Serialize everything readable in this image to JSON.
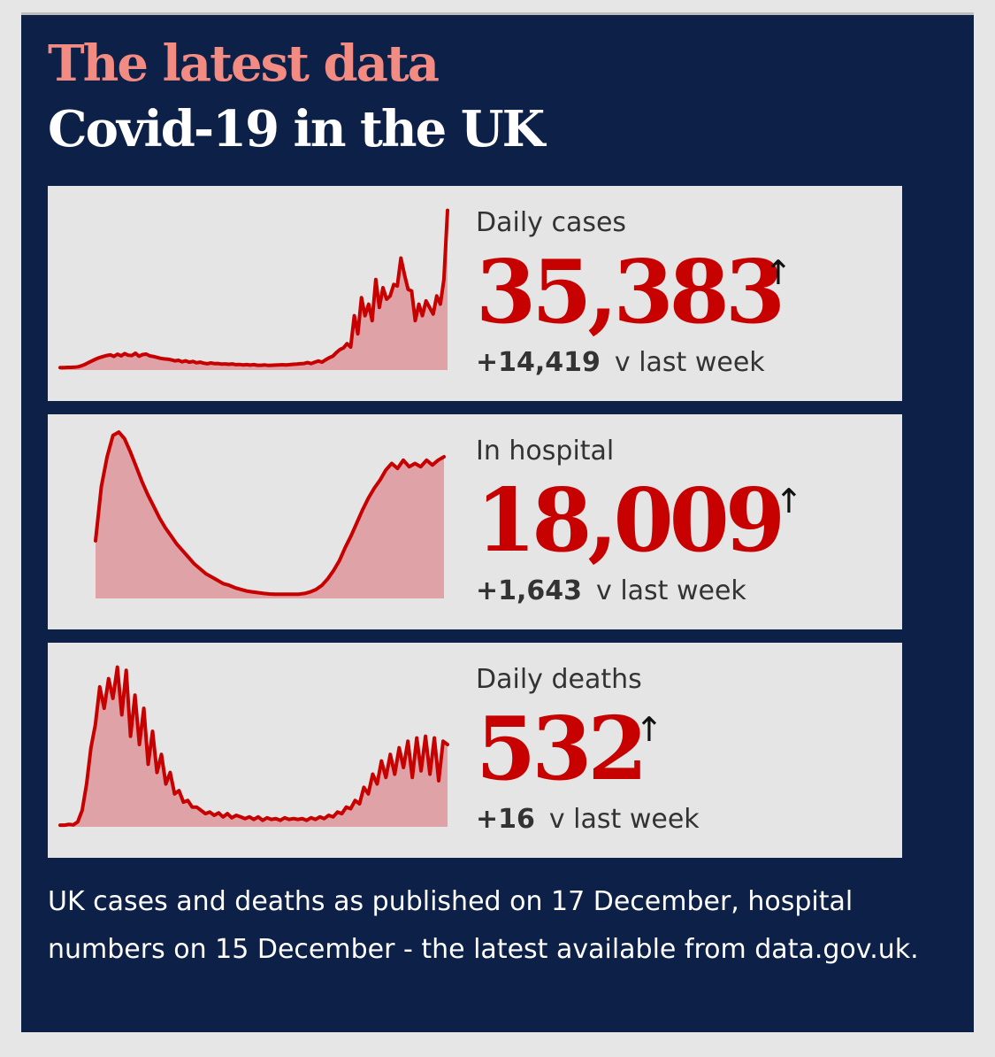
{
  "header": {
    "kicker": "The latest data",
    "title": "Covid-19 in the UK"
  },
  "panels": [
    {
      "label": "Daily cases",
      "value": "35,383",
      "arrow": "↑",
      "delta": "+14,419",
      "delta_suffix": "v last week"
    },
    {
      "label": "In hospital",
      "value": "18,009",
      "arrow": "↑",
      "delta": "+1,643",
      "delta_suffix": "v last week"
    },
    {
      "label": "Daily deaths",
      "value": "532",
      "arrow": "↑",
      "delta": "+16",
      "delta_suffix": "v last week"
    }
  ],
  "footnote": "UK cases and deaths as published on 17 December, hospital numbers on 15 December - the latest available from data.gov.uk.",
  "colors": {
    "background": "#0d2048",
    "kicker": "#f28b82",
    "accent": "#c70000",
    "area_fill": "#dfa3a7",
    "panel": "#e5e5e5"
  },
  "chart_data": [
    {
      "type": "area",
      "series": [
        {
          "values": [
            1.5,
            1.5,
            1.6,
            1.6,
            1.7,
            2,
            2.6,
            3.5,
            4.6,
            5.7,
            6.7,
            7.6,
            8.2,
            8.8,
            9.2,
            8.3,
            9.6,
            8.6,
            10,
            9,
            8.8,
            10.2,
            8.4,
            9.4,
            9.7,
            8.6,
            8.2,
            7.7,
            7.1,
            6.8,
            6.6,
            6.2,
            5.6,
            5.9,
            5,
            5.6,
            4.8,
            5.2,
            4.4,
            4.8,
            4.2,
            3.8,
            4.3,
            3.9,
            4,
            3.6,
            3.7,
            3.5,
            3.7,
            3.3,
            3.4,
            3.1,
            3.3,
            3,
            3.3,
            2.9,
            2.9,
            3.1,
            2.8,
            2.9,
            3,
            3.1,
            3.2,
            3.1,
            3.3,
            3.5,
            3.6,
            3.8,
            4,
            4.5,
            3.9,
            4.8,
            5.5,
            4.8,
            6.2,
            7.5,
            8.4,
            10.6,
            12.4,
            13.5,
            16,
            14,
            33,
            22,
            44,
            33,
            40,
            30,
            55,
            38,
            50,
            43,
            45,
            52,
            51,
            68,
            58,
            49,
            48,
            30,
            40,
            33,
            42,
            38,
            34,
            45,
            40,
            55,
            97
          ]
        }
      ],
      "ylim": [
        0,
        100
      ]
    },
    {
      "type": "area",
      "series": [
        {
          "values": [
            35,
            68,
            86,
            99,
            101,
            97,
            89,
            80,
            71,
            63,
            56,
            49,
            43,
            38,
            33,
            29,
            25,
            21,
            18,
            15,
            13,
            11,
            9,
            8,
            6.5,
            5.5,
            4.5,
            4,
            3.5,
            3,
            2.7,
            2.5,
            2.5,
            2.6,
            2.5,
            2.6,
            3,
            4,
            5.5,
            8,
            12,
            17,
            23,
            31,
            38,
            46,
            54,
            61,
            67,
            72,
            78,
            82,
            79,
            84,
            80,
            82,
            80,
            84,
            81,
            84,
            86
          ]
        }
      ],
      "ylim": [
        0,
        100
      ]
    },
    {
      "type": "area",
      "series": [
        {
          "values": [
            1,
            1,
            1.5,
            1.2,
            3,
            10,
            26,
            48,
            62,
            85,
            72,
            90,
            78,
            97,
            68,
            95,
            55,
            80,
            50,
            72,
            38,
            58,
            33,
            44,
            26,
            33,
            20,
            22,
            15,
            16,
            12,
            12,
            10,
            8,
            9,
            7,
            8.5,
            6,
            8,
            5.5,
            7,
            6,
            5,
            6,
            4.5,
            6,
            4,
            5.5,
            4.5,
            5,
            4,
            5.5,
            4.5,
            5,
            4.5,
            5,
            4,
            5.5,
            4.5,
            6,
            5,
            7,
            6,
            9,
            8,
            12,
            11,
            16,
            14,
            24,
            20,
            32,
            26,
            40,
            30,
            44,
            32,
            48,
            36,
            52,
            30,
            54,
            34,
            55,
            32,
            54,
            28,
            52,
            50
          ]
        }
      ],
      "ylim": [
        0,
        100
      ]
    }
  ]
}
